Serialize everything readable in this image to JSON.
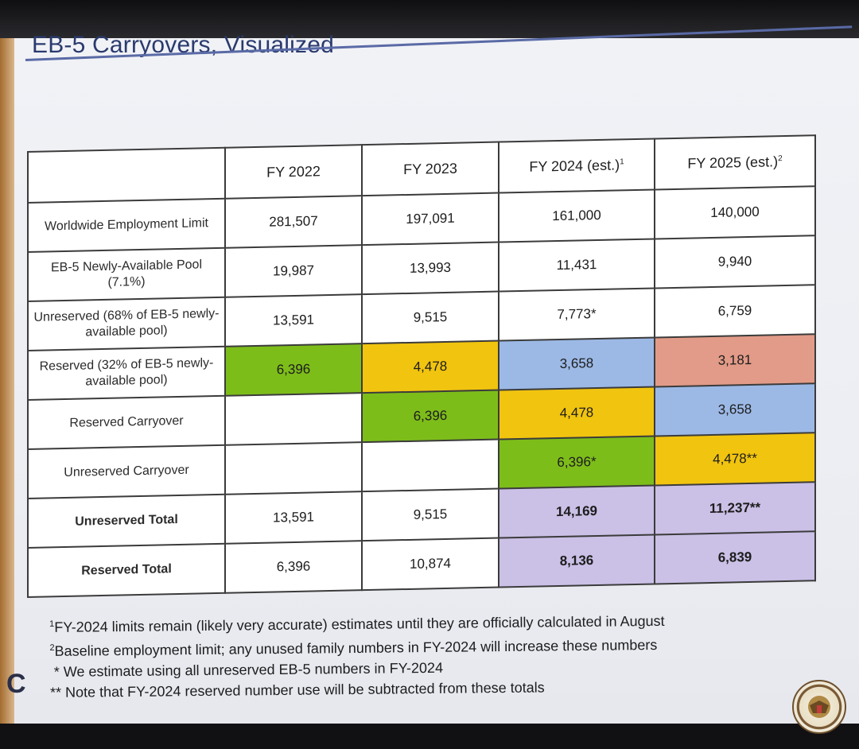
{
  "title": "EB-5 Carryovers, Visualized",
  "table": {
    "headers": [
      {
        "text": "",
        "sup": ""
      },
      {
        "text": "FY 2022",
        "sup": ""
      },
      {
        "text": "FY 2023",
        "sup": ""
      },
      {
        "text": "FY 2024 (est.)",
        "sup": "1"
      },
      {
        "text": "FY 2025 (est.)",
        "sup": "2"
      }
    ],
    "rows": [
      {
        "label": "Worldwide Employment Limit",
        "cells": [
          "281,507",
          "197,091",
          "161,000",
          "140,000"
        ]
      },
      {
        "label": "EB-5 Newly-Available Pool (7.1%)",
        "cells": [
          "19,987",
          "13,993",
          "11,431",
          "9,940"
        ]
      },
      {
        "label": "Unreserved (68% of EB-5 newly-available pool)",
        "cells": [
          "13,591",
          "9,515",
          "7,773*",
          "6,759"
        ]
      },
      {
        "label": "Reserved (32% of EB-5 newly-available pool)",
        "cells": [
          "6,396",
          "4,478",
          "3,658",
          "3,181"
        ]
      },
      {
        "label": "Reserved Carryover",
        "cells": [
          "",
          "6,396",
          "4,478",
          "3,658"
        ]
      },
      {
        "label": "Unreserved Carryover",
        "cells": [
          "",
          "",
          "6,396*",
          "4,478**"
        ]
      },
      {
        "label": "Unreserved Total",
        "cells": [
          "13,591",
          "9,515",
          "14,169",
          "11,237**"
        ]
      },
      {
        "label": "Reserved Total",
        "cells": [
          "6,396",
          "10,874",
          "8,136",
          "6,839"
        ]
      }
    ],
    "colors": {
      "green": "#7dbd1a",
      "yellow": "#f1c40f",
      "blue": "#9cb9e6",
      "salmon": "#e29b88",
      "lavender": "#cbc0e6"
    }
  },
  "footnotes": [
    {
      "mark": "1",
      "text": "FY-2024 limits remain (likely very accurate) estimates until they are officially calculated in August"
    },
    {
      "mark": "2",
      "text": "Baseline employment limit; any unused family numbers in FY-2024 will increase these numbers"
    },
    {
      "mark": "*",
      "text": " We estimate using all unreserved EB-5 numbers in FY-2024"
    },
    {
      "mark": "**",
      "text": " Note that FY-2024 reserved number use will be subtracted from these totals"
    }
  ],
  "logo": {
    "letter": "C",
    "icon": "company-logo-icon"
  },
  "seal": {
    "icon": "government-seal-icon"
  }
}
